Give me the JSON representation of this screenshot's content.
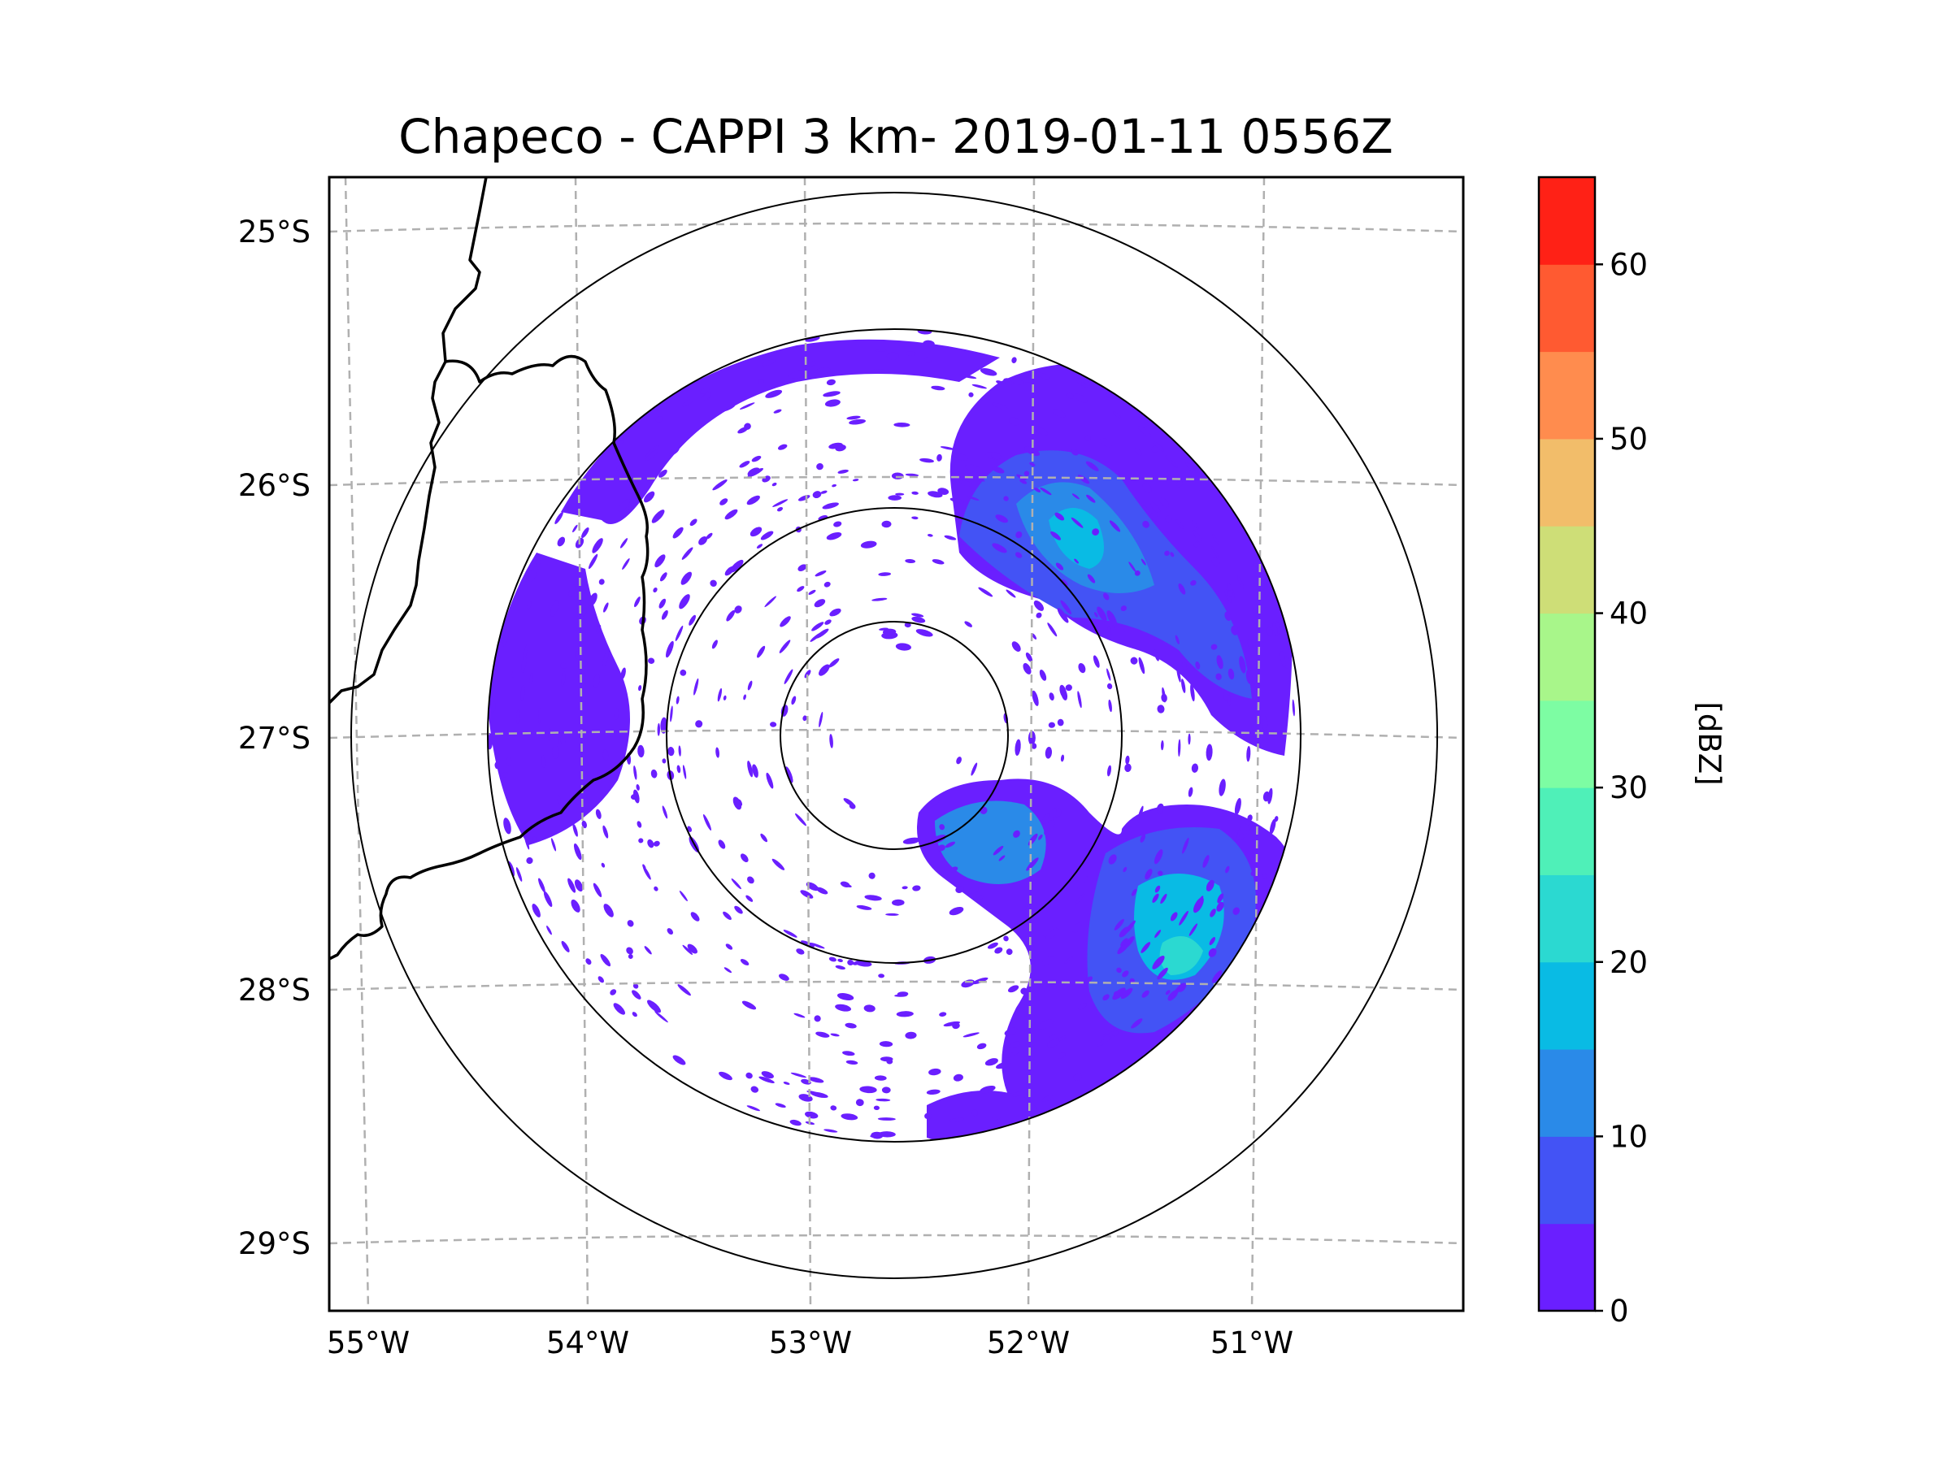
{
  "map": {
    "title": "Chapeco - CAPPI 3 km- 2019-01-11 0556Z",
    "radar_site": "Chapeco",
    "product": "CAPPI 3 km",
    "timestamp": "2019-01-11 0556Z",
    "lon_ticks": [
      "55°W",
      "54°W",
      "53°W",
      "52°W",
      "51°W"
    ],
    "lat_ticks": [
      "25°S",
      "26°S",
      "27°S",
      "28°S",
      "29°S"
    ],
    "range_rings_count": 4,
    "colorbar": {
      "label": "[dBZ]",
      "ticks": [
        "0",
        "10",
        "20",
        "30",
        "40",
        "50",
        "60"
      ],
      "min": 0,
      "max": 65,
      "step": 5,
      "colors": [
        "#6a1fff",
        "#4353f5",
        "#2a8ae8",
        "#09bbe4",
        "#2bd9d1",
        "#4ff0b8",
        "#7dfda3",
        "#a8f68a",
        "#cede77",
        "#f2bd6a",
        "#ff8c4e",
        "#ff5a31",
        "#ff2116"
      ]
    }
  }
}
